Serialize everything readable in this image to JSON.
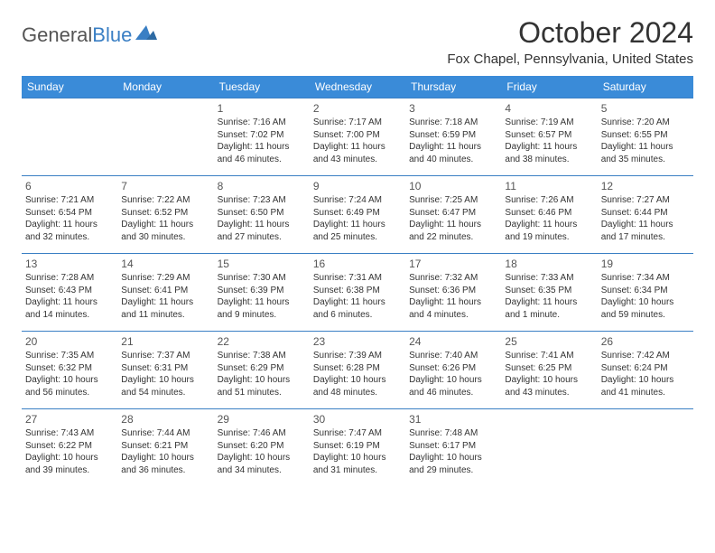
{
  "logo": {
    "text1": "General",
    "text2": "Blue"
  },
  "title": "October 2024",
  "location": "Fox Chapel, Pennsylvania, United States",
  "colors": {
    "header_bg": "#3a8bd8",
    "header_text": "#ffffff",
    "border": "#3a7fc4",
    "body_text": "#333333",
    "daynum": "#555555",
    "logo_gray": "#555555",
    "logo_blue": "#3a7fc4",
    "bg": "#ffffff"
  },
  "fonts": {
    "title_pt": 32,
    "location_pt": 15,
    "header_pt": 12,
    "daynum_pt": 12,
    "cell_pt": 10
  },
  "weekdays": [
    "Sunday",
    "Monday",
    "Tuesday",
    "Wednesday",
    "Thursday",
    "Friday",
    "Saturday"
  ],
  "weeks": [
    [
      null,
      null,
      {
        "n": "1",
        "sr": "Sunrise: 7:16 AM",
        "ss": "Sunset: 7:02 PM",
        "d1": "Daylight: 11 hours",
        "d2": "and 46 minutes."
      },
      {
        "n": "2",
        "sr": "Sunrise: 7:17 AM",
        "ss": "Sunset: 7:00 PM",
        "d1": "Daylight: 11 hours",
        "d2": "and 43 minutes."
      },
      {
        "n": "3",
        "sr": "Sunrise: 7:18 AM",
        "ss": "Sunset: 6:59 PM",
        "d1": "Daylight: 11 hours",
        "d2": "and 40 minutes."
      },
      {
        "n": "4",
        "sr": "Sunrise: 7:19 AM",
        "ss": "Sunset: 6:57 PM",
        "d1": "Daylight: 11 hours",
        "d2": "and 38 minutes."
      },
      {
        "n": "5",
        "sr": "Sunrise: 7:20 AM",
        "ss": "Sunset: 6:55 PM",
        "d1": "Daylight: 11 hours",
        "d2": "and 35 minutes."
      }
    ],
    [
      {
        "n": "6",
        "sr": "Sunrise: 7:21 AM",
        "ss": "Sunset: 6:54 PM",
        "d1": "Daylight: 11 hours",
        "d2": "and 32 minutes."
      },
      {
        "n": "7",
        "sr": "Sunrise: 7:22 AM",
        "ss": "Sunset: 6:52 PM",
        "d1": "Daylight: 11 hours",
        "d2": "and 30 minutes."
      },
      {
        "n": "8",
        "sr": "Sunrise: 7:23 AM",
        "ss": "Sunset: 6:50 PM",
        "d1": "Daylight: 11 hours",
        "d2": "and 27 minutes."
      },
      {
        "n": "9",
        "sr": "Sunrise: 7:24 AM",
        "ss": "Sunset: 6:49 PM",
        "d1": "Daylight: 11 hours",
        "d2": "and 25 minutes."
      },
      {
        "n": "10",
        "sr": "Sunrise: 7:25 AM",
        "ss": "Sunset: 6:47 PM",
        "d1": "Daylight: 11 hours",
        "d2": "and 22 minutes."
      },
      {
        "n": "11",
        "sr": "Sunrise: 7:26 AM",
        "ss": "Sunset: 6:46 PM",
        "d1": "Daylight: 11 hours",
        "d2": "and 19 minutes."
      },
      {
        "n": "12",
        "sr": "Sunrise: 7:27 AM",
        "ss": "Sunset: 6:44 PM",
        "d1": "Daylight: 11 hours",
        "d2": "and 17 minutes."
      }
    ],
    [
      {
        "n": "13",
        "sr": "Sunrise: 7:28 AM",
        "ss": "Sunset: 6:43 PM",
        "d1": "Daylight: 11 hours",
        "d2": "and 14 minutes."
      },
      {
        "n": "14",
        "sr": "Sunrise: 7:29 AM",
        "ss": "Sunset: 6:41 PM",
        "d1": "Daylight: 11 hours",
        "d2": "and 11 minutes."
      },
      {
        "n": "15",
        "sr": "Sunrise: 7:30 AM",
        "ss": "Sunset: 6:39 PM",
        "d1": "Daylight: 11 hours",
        "d2": "and 9 minutes."
      },
      {
        "n": "16",
        "sr": "Sunrise: 7:31 AM",
        "ss": "Sunset: 6:38 PM",
        "d1": "Daylight: 11 hours",
        "d2": "and 6 minutes."
      },
      {
        "n": "17",
        "sr": "Sunrise: 7:32 AM",
        "ss": "Sunset: 6:36 PM",
        "d1": "Daylight: 11 hours",
        "d2": "and 4 minutes."
      },
      {
        "n": "18",
        "sr": "Sunrise: 7:33 AM",
        "ss": "Sunset: 6:35 PM",
        "d1": "Daylight: 11 hours",
        "d2": "and 1 minute."
      },
      {
        "n": "19",
        "sr": "Sunrise: 7:34 AM",
        "ss": "Sunset: 6:34 PM",
        "d1": "Daylight: 10 hours",
        "d2": "and 59 minutes."
      }
    ],
    [
      {
        "n": "20",
        "sr": "Sunrise: 7:35 AM",
        "ss": "Sunset: 6:32 PM",
        "d1": "Daylight: 10 hours",
        "d2": "and 56 minutes."
      },
      {
        "n": "21",
        "sr": "Sunrise: 7:37 AM",
        "ss": "Sunset: 6:31 PM",
        "d1": "Daylight: 10 hours",
        "d2": "and 54 minutes."
      },
      {
        "n": "22",
        "sr": "Sunrise: 7:38 AM",
        "ss": "Sunset: 6:29 PM",
        "d1": "Daylight: 10 hours",
        "d2": "and 51 minutes."
      },
      {
        "n": "23",
        "sr": "Sunrise: 7:39 AM",
        "ss": "Sunset: 6:28 PM",
        "d1": "Daylight: 10 hours",
        "d2": "and 48 minutes."
      },
      {
        "n": "24",
        "sr": "Sunrise: 7:40 AM",
        "ss": "Sunset: 6:26 PM",
        "d1": "Daylight: 10 hours",
        "d2": "and 46 minutes."
      },
      {
        "n": "25",
        "sr": "Sunrise: 7:41 AM",
        "ss": "Sunset: 6:25 PM",
        "d1": "Daylight: 10 hours",
        "d2": "and 43 minutes."
      },
      {
        "n": "26",
        "sr": "Sunrise: 7:42 AM",
        "ss": "Sunset: 6:24 PM",
        "d1": "Daylight: 10 hours",
        "d2": "and 41 minutes."
      }
    ],
    [
      {
        "n": "27",
        "sr": "Sunrise: 7:43 AM",
        "ss": "Sunset: 6:22 PM",
        "d1": "Daylight: 10 hours",
        "d2": "and 39 minutes."
      },
      {
        "n": "28",
        "sr": "Sunrise: 7:44 AM",
        "ss": "Sunset: 6:21 PM",
        "d1": "Daylight: 10 hours",
        "d2": "and 36 minutes."
      },
      {
        "n": "29",
        "sr": "Sunrise: 7:46 AM",
        "ss": "Sunset: 6:20 PM",
        "d1": "Daylight: 10 hours",
        "d2": "and 34 minutes."
      },
      {
        "n": "30",
        "sr": "Sunrise: 7:47 AM",
        "ss": "Sunset: 6:19 PM",
        "d1": "Daylight: 10 hours",
        "d2": "and 31 minutes."
      },
      {
        "n": "31",
        "sr": "Sunrise: 7:48 AM",
        "ss": "Sunset: 6:17 PM",
        "d1": "Daylight: 10 hours",
        "d2": "and 29 minutes."
      },
      null,
      null
    ]
  ]
}
